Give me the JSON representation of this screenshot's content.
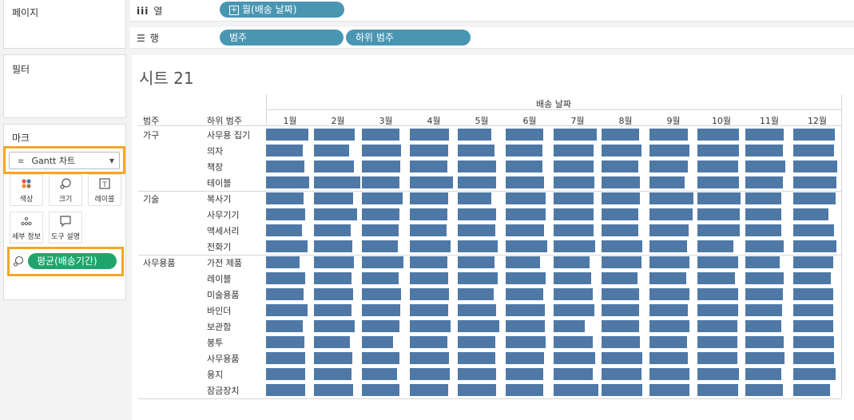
{
  "left_panel": {
    "pages_title": "페이지",
    "filters_title": "필터",
    "marks": {
      "title": "마크",
      "mark_type": "Gantt 차트",
      "buttons": [
        {
          "label": "색상",
          "icon": "color-icon"
        },
        {
          "label": "크기",
          "icon": "size-icon"
        },
        {
          "label": "레이블",
          "icon": "label-icon"
        },
        {
          "label": "세부 정보",
          "icon": "detail-icon"
        },
        {
          "label": "도구 설명",
          "icon": "tooltip-icon"
        }
      ],
      "size_pill": "평균(배송기간)"
    }
  },
  "shelves": {
    "columns_label": "열",
    "columns_pill": "월(배송 날짜)",
    "rows_label": "행",
    "rows_pills": [
      "범주",
      "하위 범주"
    ]
  },
  "sheet": {
    "title": "시트 21",
    "header_top": "배송 날짜",
    "col_header_category": "범주",
    "col_header_subcategory": "하위 범주",
    "months": [
      "1월",
      "2월",
      "3월",
      "4월",
      "5월",
      "6월",
      "7월",
      "8월",
      "9월",
      "10월",
      "11월",
      "12월"
    ],
    "groups": [
      {
        "category": "가구",
        "subcategories": [
          "사무용 집기",
          "의자",
          "책장",
          "테이블"
        ]
      },
      {
        "category": "기술",
        "subcategories": [
          "복사기",
          "사무기기",
          "액세서리",
          "전화기"
        ]
      },
      {
        "category": "사무용품",
        "subcategories": [
          "가전 제품",
          "레이블",
          "미술용품",
          "바인더",
          "보관함",
          "봉투",
          "사무용품",
          "용지",
          "잠금장치"
        ]
      }
    ]
  },
  "chart_data": {
    "type": "gantt",
    "x_dimension": "월(배송 날짜)",
    "size_measure": "평균(배송기간)",
    "note_values_are_relative_bar_lengths_fraction_of_cell": true,
    "rows": [
      {
        "category": "가구",
        "subcategory": "사무용 집기",
        "values": [
          0.88,
          0.85,
          0.78,
          0.82,
          0.7,
          0.78,
          0.9,
          0.78,
          0.8,
          0.87,
          0.8,
          0.87
        ]
      },
      {
        "category": "가구",
        "subcategory": "의자",
        "values": [
          0.77,
          0.73,
          0.82,
          0.8,
          0.77,
          0.77,
          0.83,
          0.83,
          0.83,
          0.87,
          0.78,
          0.85
        ]
      },
      {
        "category": "가구",
        "subcategory": "책장",
        "values": [
          0.8,
          0.83,
          0.8,
          0.78,
          0.8,
          0.77,
          0.83,
          0.77,
          0.8,
          0.85,
          0.83,
          0.92
        ]
      },
      {
        "category": "가구",
        "subcategory": "테이블",
        "values": [
          0.9,
          0.97,
          0.78,
          0.9,
          0.8,
          0.8,
          0.85,
          0.8,
          0.73,
          0.87,
          0.78,
          0.9
        ]
      },
      {
        "category": "기술",
        "subcategory": "복사기",
        "values": [
          0.78,
          0.82,
          0.85,
          0.8,
          0.7,
          0.83,
          0.83,
          0.8,
          0.92,
          0.9,
          0.75,
          0.88
        ]
      },
      {
        "category": "기술",
        "subcategory": "사무기기",
        "values": [
          0.82,
          0.9,
          0.78,
          0.78,
          0.8,
          0.83,
          0.83,
          0.77,
          0.9,
          0.88,
          0.75,
          0.73
        ]
      },
      {
        "category": "기술",
        "subcategory": "액세서리",
        "values": [
          0.75,
          0.77,
          0.77,
          0.77,
          0.78,
          0.8,
          0.83,
          0.77,
          0.82,
          0.88,
          0.75,
          0.85
        ]
      },
      {
        "category": "기술",
        "subcategory": "전화기",
        "values": [
          0.87,
          0.8,
          0.75,
          0.85,
          0.83,
          0.87,
          0.87,
          0.85,
          0.78,
          0.75,
          0.8,
          0.9
        ]
      },
      {
        "category": "사무용품",
        "subcategory": "가전 제품",
        "values": [
          0.7,
          0.83,
          0.87,
          0.78,
          0.77,
          0.72,
          0.75,
          0.83,
          0.83,
          0.85,
          0.72,
          0.83
        ]
      },
      {
        "category": "사무용품",
        "subcategory": "레이블",
        "values": [
          0.82,
          0.78,
          0.77,
          0.8,
          0.83,
          0.83,
          0.78,
          0.75,
          0.77,
          0.78,
          0.8,
          0.78
        ]
      },
      {
        "category": "사무용품",
        "subcategory": "미술용품",
        "values": [
          0.78,
          0.82,
          0.82,
          0.82,
          0.75,
          0.78,
          0.82,
          0.78,
          0.83,
          0.85,
          0.78,
          0.83
        ]
      },
      {
        "category": "사무용품",
        "subcategory": "바인더",
        "values": [
          0.87,
          0.78,
          0.8,
          0.8,
          0.8,
          0.82,
          0.85,
          0.78,
          0.8,
          0.85,
          0.77,
          0.83
        ]
      },
      {
        "category": "사무용품",
        "subcategory": "보관함",
        "values": [
          0.77,
          0.85,
          0.78,
          0.85,
          0.87,
          0.82,
          0.65,
          0.78,
          0.83,
          0.83,
          0.75,
          0.83
        ]
      },
      {
        "category": "사무용품",
        "subcategory": "봉투",
        "values": [
          0.8,
          0.75,
          0.65,
          0.78,
          0.78,
          0.83,
          0.82,
          0.8,
          0.78,
          0.83,
          0.8,
          0.85
        ]
      },
      {
        "category": "사무용품",
        "subcategory": "사무용품",
        "values": [
          0.82,
          0.8,
          0.78,
          0.82,
          0.78,
          0.8,
          0.87,
          0.85,
          0.8,
          0.83,
          0.82,
          0.85
        ]
      },
      {
        "category": "사무용품",
        "subcategory": "용지",
        "values": [
          0.82,
          0.78,
          0.73,
          0.83,
          0.8,
          0.78,
          0.82,
          0.83,
          0.83,
          0.87,
          0.75,
          0.88
        ]
      },
      {
        "category": "사무용품",
        "subcategory": "잠금장치",
        "values": [
          0.82,
          0.82,
          0.78,
          0.8,
          0.8,
          0.78,
          0.93,
          0.85,
          0.83,
          0.85,
          0.78,
          0.77
        ]
      }
    ]
  },
  "colors": {
    "bar": "#4e79a7",
    "pill_blue": "#4996b2",
    "pill_green": "#1fa56c",
    "highlight": "#f5a623"
  }
}
